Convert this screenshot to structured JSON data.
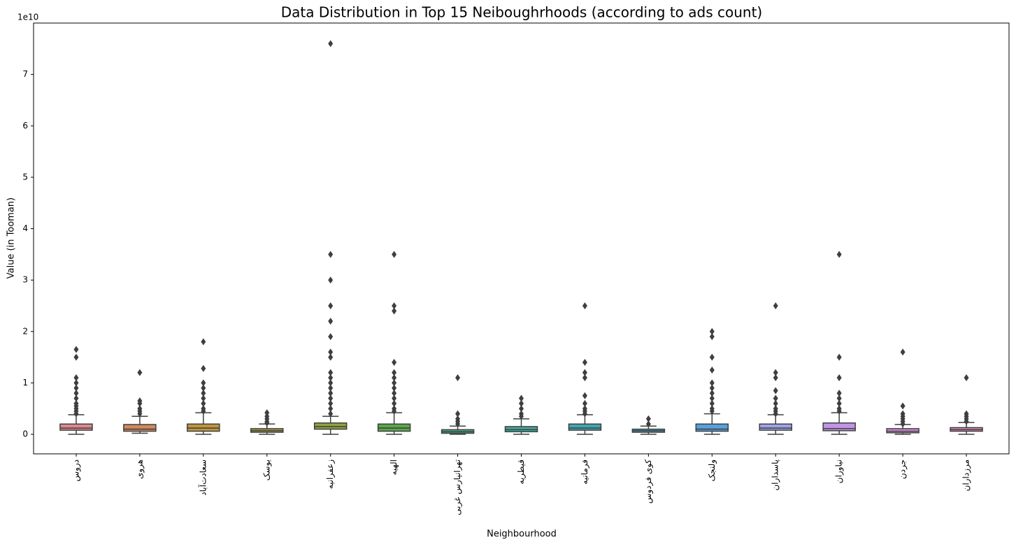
{
  "chart_data": {
    "type": "box",
    "title": "Data Distribution in Top 15 Neiboughrhoods (according to ads count)",
    "x_label": "Neighbourhood",
    "y_label": "Value (in Tooman)",
    "y_offset_label": "1e10",
    "categories": [
      "دروس",
      "هروی",
      "سعادت‌آباد",
      "یوسک",
      "زعفرانیه",
      "الهیه",
      "تهرانپارس غربی",
      "قیطریه",
      "فرمانیه",
      "کوی فردوس",
      "ولنجک",
      "پاسداران",
      "نیاوران",
      "جردن",
      "مرزداران"
    ],
    "colors": [
      "#e1888f",
      "#d2895e",
      "#c0963f",
      "#a69c3d",
      "#8fa43d",
      "#5aa84a",
      "#41aa7f",
      "#3eaa9d",
      "#40a7b2",
      "#43a4c4",
      "#55a0dd",
      "#a0a3e8",
      "#c095e5",
      "#d68ad9",
      "#e389bb"
    ],
    "boxes": [
      {
        "whislo": 0,
        "q1": 0.08,
        "med": 0.12,
        "q3": 0.2,
        "whishi": 0.38,
        "fliers": [
          1.65,
          1.5,
          1.1,
          1.0,
          0.9,
          0.8,
          0.7,
          0.6,
          0.55,
          0.5,
          0.45,
          0.4
        ]
      },
      {
        "whislo": 0.02,
        "q1": 0.06,
        "med": 0.1,
        "q3": 0.19,
        "whishi": 0.35,
        "fliers": [
          1.2,
          0.65,
          0.6,
          0.5,
          0.45,
          0.4
        ]
      },
      {
        "whislo": 0,
        "q1": 0.06,
        "med": 0.12,
        "q3": 0.2,
        "whishi": 0.42,
        "fliers": [
          1.8,
          1.28,
          1.0,
          0.9,
          0.8,
          0.7,
          0.6,
          0.5,
          0.45
        ]
      },
      {
        "whislo": 0,
        "q1": 0.04,
        "med": 0.07,
        "q3": 0.11,
        "whishi": 0.2,
        "fliers": [
          0.42,
          0.35,
          0.3,
          0.25,
          0.22
        ]
      },
      {
        "whislo": 0,
        "q1": 0.1,
        "med": 0.15,
        "q3": 0.22,
        "whishi": 0.35,
        "fliers": [
          7.6,
          3.5,
          3.0,
          2.5,
          2.2,
          1.9,
          1.6,
          1.5,
          1.2,
          1.1,
          1.0,
          0.9,
          0.8,
          0.7,
          0.6,
          0.5,
          0.4
        ]
      },
      {
        "whislo": 0,
        "q1": 0.06,
        "med": 0.12,
        "q3": 0.2,
        "whishi": 0.42,
        "fliers": [
          3.5,
          2.5,
          2.4,
          1.4,
          1.2,
          1.1,
          1.0,
          0.9,
          0.8,
          0.7,
          0.6,
          0.5,
          0.45
        ]
      },
      {
        "whislo": 0,
        "q1": 0.02,
        "med": 0.05,
        "q3": 0.09,
        "whishi": 0.16,
        "fliers": [
          1.1,
          0.4,
          0.3,
          0.25,
          0.2
        ]
      },
      {
        "whislo": 0,
        "q1": 0.05,
        "med": 0.09,
        "q3": 0.15,
        "whishi": 0.3,
        "fliers": [
          0.7,
          0.6,
          0.5,
          0.4,
          0.35
        ]
      },
      {
        "whislo": 0,
        "q1": 0.08,
        "med": 0.12,
        "q3": 0.2,
        "whishi": 0.38,
        "fliers": [
          2.5,
          1.4,
          1.2,
          1.1,
          0.75,
          0.6,
          0.5,
          0.45,
          0.4
        ]
      },
      {
        "whislo": 0,
        "q1": 0.04,
        "med": 0.07,
        "q3": 0.1,
        "whishi": 0.16,
        "fliers": [
          0.3,
          0.2
        ]
      },
      {
        "whislo": 0,
        "q1": 0.06,
        "med": 0.1,
        "q3": 0.2,
        "whishi": 0.4,
        "fliers": [
          2.0,
          1.9,
          1.5,
          1.25,
          1.0,
          0.9,
          0.8,
          0.7,
          0.6,
          0.5,
          0.45
        ]
      },
      {
        "whislo": 0,
        "q1": 0.08,
        "med": 0.12,
        "q3": 0.2,
        "whishi": 0.38,
        "fliers": [
          2.5,
          1.2,
          1.1,
          0.85,
          0.7,
          0.6,
          0.5,
          0.45,
          0.4
        ]
      },
      {
        "whislo": 0,
        "q1": 0.07,
        "med": 0.11,
        "q3": 0.22,
        "whishi": 0.42,
        "fliers": [
          3.5,
          1.5,
          1.1,
          0.8,
          0.7,
          0.6,
          0.5,
          0.45
        ]
      },
      {
        "whislo": 0,
        "q1": 0.03,
        "med": 0.06,
        "q3": 0.11,
        "whishi": 0.19,
        "fliers": [
          1.6,
          0.55,
          0.4,
          0.35,
          0.3,
          0.25,
          0.2
        ]
      },
      {
        "whislo": 0,
        "q1": 0.06,
        "med": 0.09,
        "q3": 0.13,
        "whishi": 0.23,
        "fliers": [
          1.1,
          0.4,
          0.35,
          0.3,
          0.25
        ]
      }
    ],
    "ylim": [
      -0.38,
      8.0
    ],
    "yticks": [
      0,
      1,
      2,
      3,
      4,
      5,
      6,
      7
    ]
  }
}
